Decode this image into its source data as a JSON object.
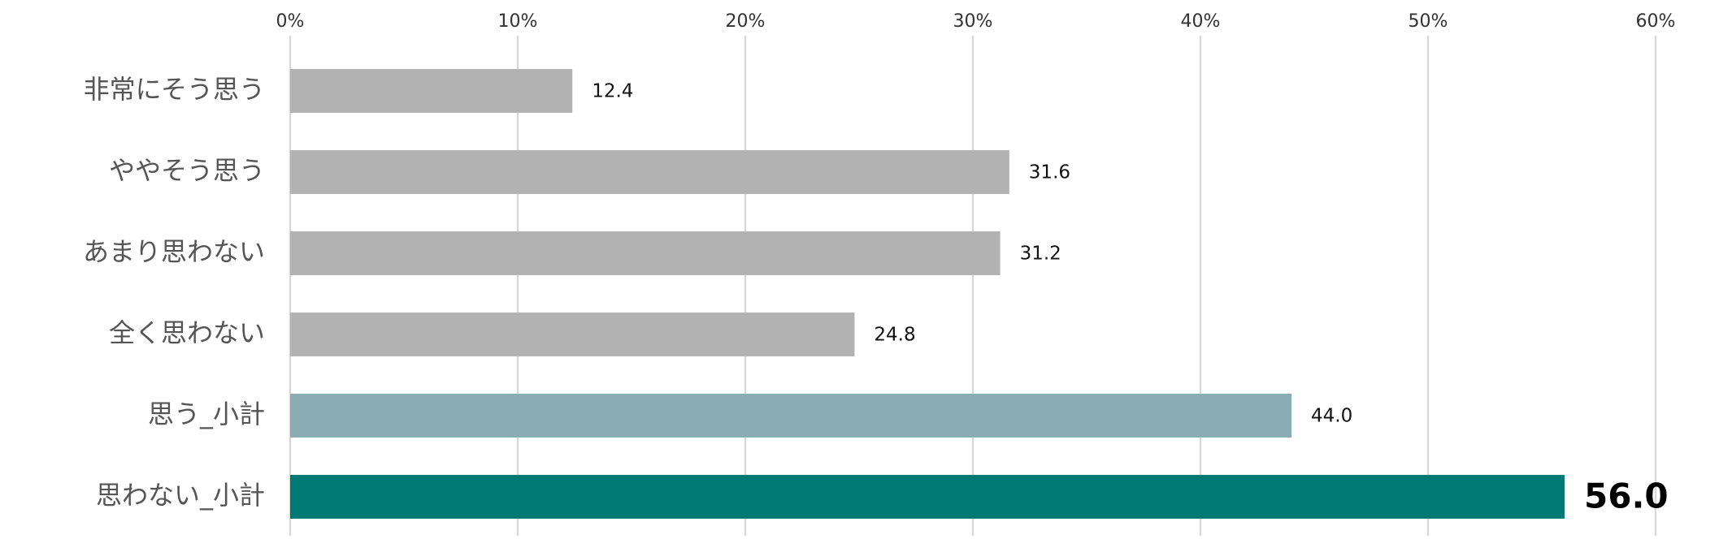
{
  "chart_data": {
    "type": "bar",
    "orientation": "horizontal",
    "title": "",
    "xlabel": "",
    "ylabel": "",
    "xlim": [
      0,
      60
    ],
    "x_ticks": [
      "0%",
      "10%",
      "20%",
      "30%",
      "40%",
      "50%",
      "60%"
    ],
    "x_tick_values": [
      0,
      10,
      20,
      30,
      40,
      50,
      60
    ],
    "x_axis_position": "top",
    "grid": true,
    "legend": "none",
    "categories": [
      "非常にそう思う",
      "ややそう思う",
      "あまり思わない",
      "全く思わない",
      "思う_小計",
      "思わない_小計"
    ],
    "values": [
      12.4,
      31.6,
      31.2,
      24.8,
      44.0,
      56.0
    ],
    "value_labels": [
      "12.4",
      "31.6",
      "31.2",
      "24.8",
      "44.0",
      "56.0"
    ],
    "bar_colors": [
      "#b2b2b2",
      "#b2b2b2",
      "#b2b2b2",
      "#b2b2b2",
      "#8aadb3",
      "#007873"
    ],
    "emphasized_index": 5
  }
}
